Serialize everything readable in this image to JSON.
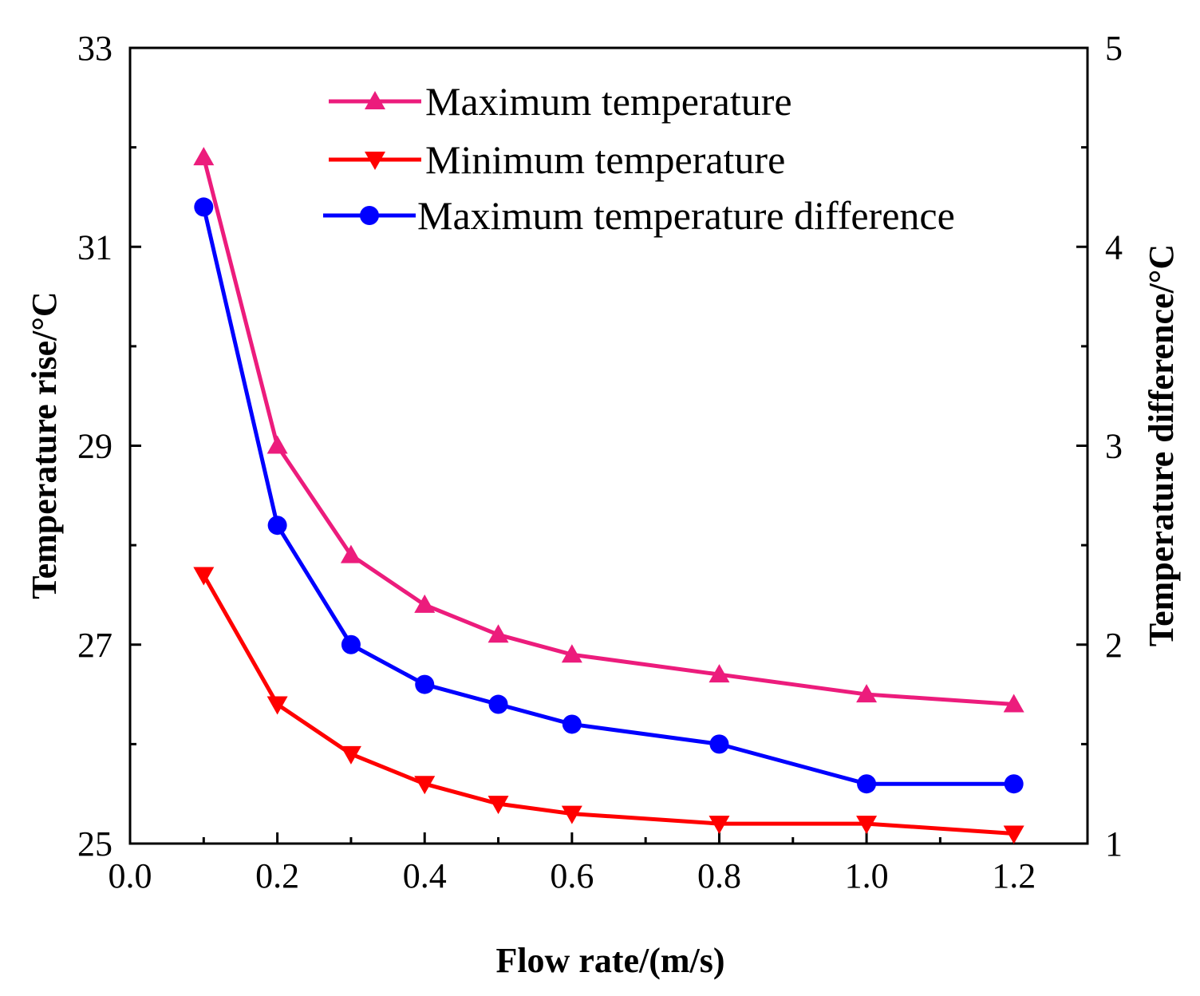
{
  "chart_data": {
    "type": "line",
    "title": "",
    "xlabel": "Flow rate/(m/s)",
    "ylabel_left": "Temperature rise/°C",
    "ylabel_right": "Temperature difference/°C",
    "xlim": [
      0.0,
      1.3
    ],
    "ylim_left": [
      25,
      33
    ],
    "ylim_right": [
      1,
      5
    ],
    "x_ticks": [
      "0.0",
      "0.2",
      "0.4",
      "0.6",
      "0.8",
      "1.0",
      "1.2"
    ],
    "y_left_ticks": [
      "25",
      "27",
      "29",
      "31",
      "33"
    ],
    "y_right_ticks": [
      "1",
      "2",
      "3",
      "4",
      "5"
    ],
    "x": [
      0.1,
      0.2,
      0.3,
      0.4,
      0.5,
      0.6,
      0.8,
      1.0,
      1.2
    ],
    "legend_position": "top-center",
    "series": [
      {
        "name": "Maximum temperature",
        "axis": "left",
        "marker": "triangle-up",
        "color": "#ec1c7c",
        "values": [
          31.9,
          29.0,
          27.9,
          27.4,
          27.1,
          26.9,
          26.7,
          26.5,
          26.4
        ]
      },
      {
        "name": "Minimum temperature",
        "axis": "left",
        "marker": "triangle-down",
        "color": "#ff0000",
        "values": [
          27.7,
          26.4,
          25.9,
          25.6,
          25.4,
          25.3,
          25.2,
          25.2,
          25.1
        ]
      },
      {
        "name": "Maximum temperature difference",
        "axis": "right",
        "marker": "circle",
        "color": "#0000ff",
        "values": [
          4.2,
          2.6,
          2.0,
          1.8,
          1.7,
          1.6,
          1.5,
          1.3,
          1.3
        ]
      }
    ]
  }
}
